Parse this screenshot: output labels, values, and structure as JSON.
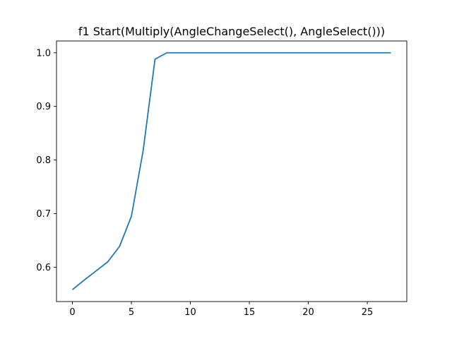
{
  "chart_data": {
    "type": "line",
    "title": "f1 Start(Multiply(AngleChangeSelect(), AngleSelect()))",
    "xlabel": "",
    "ylabel": "",
    "xlim": [
      -1.35,
      28.35
    ],
    "ylim": [
      0.5359,
      1.0221
    ],
    "xticks": [
      0,
      5,
      10,
      15,
      20,
      25
    ],
    "xtick_labels": [
      "0",
      "5",
      "10",
      "15",
      "20",
      "25"
    ],
    "yticks": [
      0.6,
      0.7,
      0.8,
      0.9,
      1.0
    ],
    "ytick_labels": [
      "0.6",
      "0.7",
      "0.8",
      "0.9",
      "1.0"
    ],
    "grid": false,
    "series": [
      {
        "color": "#1f77b4",
        "x": [
          0,
          1,
          2,
          3,
          4,
          5,
          6,
          7,
          8,
          9,
          10,
          11,
          12,
          13,
          14,
          15,
          16,
          17,
          18,
          19,
          20,
          21,
          22,
          23,
          24,
          25,
          26,
          27
        ],
        "y": [
          0.558,
          0.576,
          0.593,
          0.61,
          0.639,
          0.695,
          0.818,
          0.988,
          1.0,
          1.0,
          1.0,
          1.0,
          1.0,
          1.0,
          1.0,
          1.0,
          1.0,
          1.0,
          1.0,
          1.0,
          1.0,
          1.0,
          1.0,
          1.0,
          1.0,
          1.0,
          1.0,
          1.0
        ]
      }
    ]
  }
}
